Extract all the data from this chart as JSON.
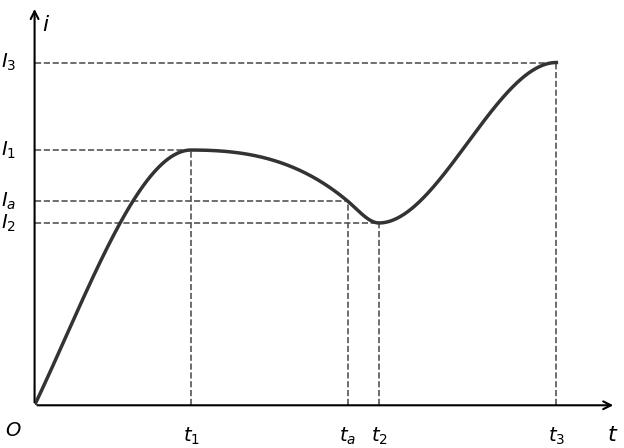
{
  "curve_color": "#333333",
  "line_width": 2.5,
  "dashed_color": "#555555",
  "dashed_lw": 1.2,
  "t1": 0.3,
  "ta": 0.6,
  "t2": 0.66,
  "t3": 1.0,
  "I1": 0.7,
  "Ia": 0.56,
  "I2": 0.5,
  "I3": 0.94,
  "xlim": [
    0,
    1.12
  ],
  "ylim": [
    0,
    1.1
  ],
  "figsize": [
    6.24,
    4.48
  ],
  "dpi": 100,
  "font_size": 14
}
